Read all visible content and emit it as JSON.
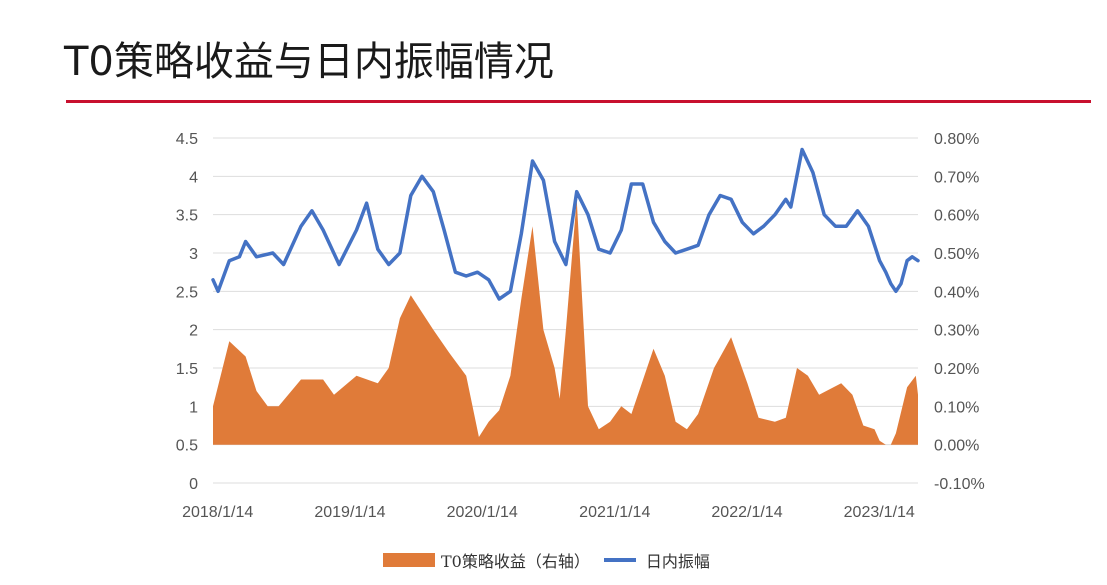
{
  "page": {
    "title": "T0策略收益与日内振幅情况"
  },
  "colors": {
    "accent_rule": "#c8102e",
    "area": "#e07b39",
    "line": "#4472c4",
    "grid": "#dddddd"
  },
  "chart_data": {
    "type": "area",
    "title": "",
    "x_tick_labels": [
      "2018/1/14",
      "2019/1/14",
      "2020/1/14",
      "2021/1/14",
      "2022/1/14",
      "2023/1/14"
    ],
    "x_range": [
      "2018-01-01",
      "2023-05-01"
    ],
    "y_left": {
      "label": "",
      "range": [
        0,
        4.5
      ],
      "ticks": [
        "0",
        "0.5",
        "1",
        "1.5",
        "2",
        "2.5",
        "3",
        "3.5",
        "4",
        "4.5"
      ]
    },
    "y_right": {
      "label": "",
      "range": [
        -0.1,
        0.8
      ],
      "ticks": [
        "-0.10%",
        "0.00%",
        "0.10%",
        "0.20%",
        "0.30%",
        "0.40%",
        "0.50%",
        "0.60%",
        "0.70%",
        "0.80%"
      ]
    },
    "grid": true,
    "legend_position": "bottom",
    "series": [
      {
        "name": "T0策略收益（右轴）",
        "type": "area",
        "axis": "right",
        "points": [
          [
            "2018-01-01",
            0.1
          ],
          [
            "2018-02-15",
            0.27
          ],
          [
            "2018-04-01",
            0.23
          ],
          [
            "2018-05-01",
            0.14
          ],
          [
            "2018-06-01",
            0.1
          ],
          [
            "2018-07-01",
            0.1
          ],
          [
            "2018-09-01",
            0.17
          ],
          [
            "2018-11-01",
            0.17
          ],
          [
            "2018-12-01",
            0.13
          ],
          [
            "2019-02-01",
            0.18
          ],
          [
            "2019-04-01",
            0.16
          ],
          [
            "2019-05-01",
            0.2
          ],
          [
            "2019-06-01",
            0.33
          ],
          [
            "2019-07-01",
            0.39
          ],
          [
            "2019-09-01",
            0.3
          ],
          [
            "2019-10-15",
            0.24
          ],
          [
            "2019-12-01",
            0.18
          ],
          [
            "2020-01-05",
            0.02
          ],
          [
            "2020-02-01",
            0.06
          ],
          [
            "2020-03-01",
            0.09
          ],
          [
            "2020-04-01",
            0.18
          ],
          [
            "2020-05-01",
            0.38
          ],
          [
            "2020-06-01",
            0.57
          ],
          [
            "2020-07-01",
            0.3
          ],
          [
            "2020-08-01",
            0.2
          ],
          [
            "2020-08-15",
            0.12
          ],
          [
            "2020-09-01",
            0.3
          ],
          [
            "2020-10-01",
            0.64
          ],
          [
            "2020-11-01",
            0.1
          ],
          [
            "2020-12-01",
            0.04
          ],
          [
            "2021-01-01",
            0.06
          ],
          [
            "2021-02-01",
            0.1
          ],
          [
            "2021-03-01",
            0.08
          ],
          [
            "2021-05-01",
            0.25
          ],
          [
            "2021-06-01",
            0.18
          ],
          [
            "2021-07-01",
            0.06
          ],
          [
            "2021-08-01",
            0.04
          ],
          [
            "2021-09-01",
            0.08
          ],
          [
            "2021-10-15",
            0.2
          ],
          [
            "2021-12-01",
            0.28
          ],
          [
            "2022-01-15",
            0.16
          ],
          [
            "2022-02-15",
            0.07
          ],
          [
            "2022-04-01",
            0.06
          ],
          [
            "2022-05-01",
            0.07
          ],
          [
            "2022-06-01",
            0.2
          ],
          [
            "2022-07-01",
            0.18
          ],
          [
            "2022-08-01",
            0.13
          ],
          [
            "2022-10-01",
            0.16
          ],
          [
            "2022-11-01",
            0.13
          ],
          [
            "2022-12-01",
            0.05
          ],
          [
            "2023-01-01",
            0.04
          ],
          [
            "2023-01-15",
            0.01
          ],
          [
            "2023-02-01",
            0.0
          ],
          [
            "2023-02-15",
            0.0
          ],
          [
            "2023-03-01",
            0.03
          ],
          [
            "2023-04-01",
            0.15
          ],
          [
            "2023-04-25",
            0.18
          ],
          [
            "2023-05-01",
            0.13
          ]
        ]
      },
      {
        "name": "日内振幅",
        "type": "line",
        "axis": "right",
        "points": [
          [
            "2018-01-01",
            0.43
          ],
          [
            "2018-01-15",
            0.4
          ],
          [
            "2018-02-15",
            0.48
          ],
          [
            "2018-03-15",
            0.49
          ],
          [
            "2018-04-01",
            0.53
          ],
          [
            "2018-05-01",
            0.49
          ],
          [
            "2018-06-15",
            0.5
          ],
          [
            "2018-07-15",
            0.47
          ],
          [
            "2018-09-01",
            0.57
          ],
          [
            "2018-10-01",
            0.61
          ],
          [
            "2018-11-01",
            0.56
          ],
          [
            "2018-12-15",
            0.47
          ],
          [
            "2019-02-01",
            0.56
          ],
          [
            "2019-03-01",
            0.63
          ],
          [
            "2019-04-01",
            0.51
          ],
          [
            "2019-05-01",
            0.47
          ],
          [
            "2019-06-01",
            0.5
          ],
          [
            "2019-07-01",
            0.65
          ],
          [
            "2019-08-01",
            0.7
          ],
          [
            "2019-09-01",
            0.66
          ],
          [
            "2019-10-01",
            0.56
          ],
          [
            "2019-11-01",
            0.45
          ],
          [
            "2019-12-01",
            0.44
          ],
          [
            "2020-01-01",
            0.45
          ],
          [
            "2020-02-01",
            0.43
          ],
          [
            "2020-03-01",
            0.38
          ],
          [
            "2020-04-01",
            0.4
          ],
          [
            "2020-05-01",
            0.55
          ],
          [
            "2020-06-01",
            0.74
          ],
          [
            "2020-07-01",
            0.69
          ],
          [
            "2020-08-01",
            0.53
          ],
          [
            "2020-09-01",
            0.47
          ],
          [
            "2020-10-01",
            0.66
          ],
          [
            "2020-11-01",
            0.6
          ],
          [
            "2020-12-01",
            0.51
          ],
          [
            "2021-01-01",
            0.5
          ],
          [
            "2021-02-01",
            0.56
          ],
          [
            "2021-03-01",
            0.68
          ],
          [
            "2021-04-01",
            0.68
          ],
          [
            "2021-05-01",
            0.58
          ],
          [
            "2021-06-01",
            0.53
          ],
          [
            "2021-07-01",
            0.5
          ],
          [
            "2021-08-01",
            0.51
          ],
          [
            "2021-09-01",
            0.52
          ],
          [
            "2021-10-01",
            0.6
          ],
          [
            "2021-11-01",
            0.65
          ],
          [
            "2021-12-01",
            0.64
          ],
          [
            "2022-01-01",
            0.58
          ],
          [
            "2022-02-01",
            0.55
          ],
          [
            "2022-03-01",
            0.57
          ],
          [
            "2022-04-01",
            0.6
          ],
          [
            "2022-05-01",
            0.64
          ],
          [
            "2022-05-15",
            0.62
          ],
          [
            "2022-06-15",
            0.77
          ],
          [
            "2022-07-15",
            0.71
          ],
          [
            "2022-08-15",
            0.6
          ],
          [
            "2022-09-15",
            0.57
          ],
          [
            "2022-10-15",
            0.57
          ],
          [
            "2022-11-15",
            0.61
          ],
          [
            "2022-12-15",
            0.57
          ],
          [
            "2023-01-15",
            0.48
          ],
          [
            "2023-02-01",
            0.45
          ],
          [
            "2023-02-15",
            0.42
          ],
          [
            "2023-03-01",
            0.4
          ],
          [
            "2023-03-15",
            0.42
          ],
          [
            "2023-04-01",
            0.48
          ],
          [
            "2023-04-15",
            0.49
          ],
          [
            "2023-05-01",
            0.48
          ]
        ]
      }
    ]
  },
  "legend": {
    "area_label": "T0策略收益（右轴）",
    "line_label": "日内振幅"
  }
}
